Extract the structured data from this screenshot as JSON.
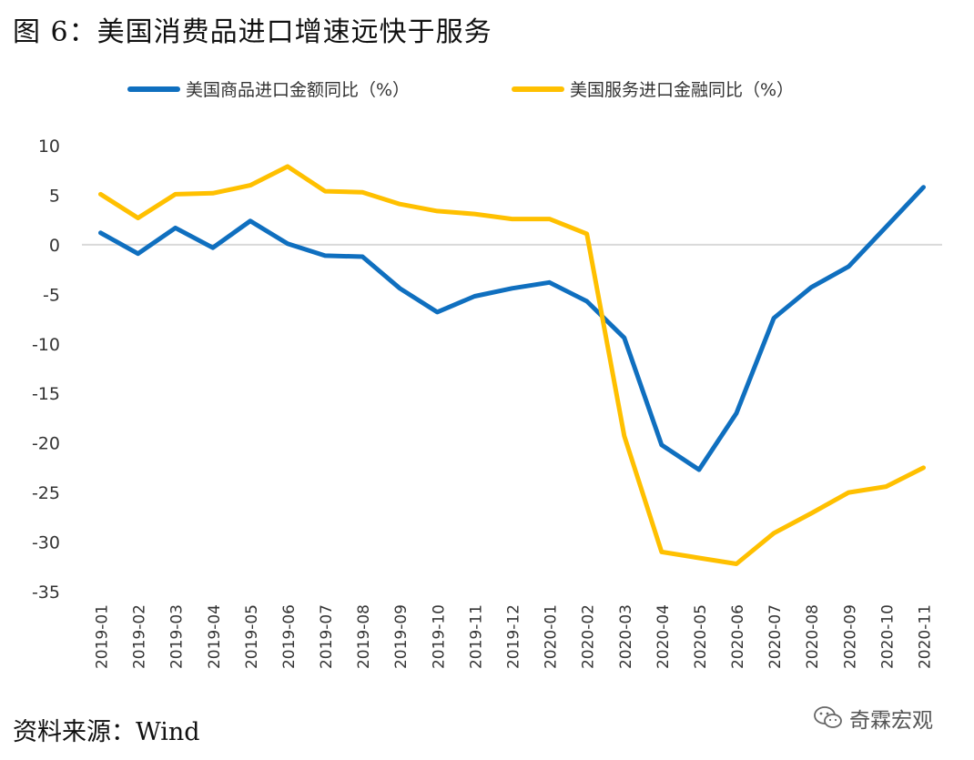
{
  "title": "图 6：美国消费品进口增速远快于服务",
  "source": "资料来源：Wind",
  "watermark": {
    "text": "奇霖宏观",
    "icon": "wechat-bubbles-icon"
  },
  "colors": {
    "goods": "#0F6FBF",
    "services": "#FFC000",
    "zero_line": "#D9D9D9"
  },
  "chart_data": {
    "type": "line",
    "title": "",
    "xlabel": "",
    "ylabel": "",
    "ylim": [
      -35,
      10
    ],
    "yticks": [
      10,
      5,
      0,
      -5,
      -10,
      -15,
      -20,
      -25,
      -30,
      -35
    ],
    "legend": "top",
    "grid": false,
    "categories": [
      "2019-01",
      "2019-02",
      "2019-03",
      "2019-04",
      "2019-05",
      "2019-06",
      "2019-07",
      "2019-08",
      "2019-09",
      "2019-10",
      "2019-11",
      "2019-12",
      "2020-01",
      "2020-02",
      "2020-03",
      "2020-04",
      "2020-05",
      "2020-06",
      "2020-07",
      "2020-08",
      "2020-09",
      "2020-10",
      "2020-11"
    ],
    "series": [
      {
        "name": "美国商品进口金额同比（%）",
        "color": "#0F6FBF",
        "values": [
          1.2,
          -0.9,
          1.7,
          -0.3,
          2.4,
          0.1,
          -1.1,
          -1.2,
          -4.4,
          -6.8,
          -5.2,
          -4.4,
          -3.8,
          -5.7,
          -9.4,
          -20.2,
          -22.7,
          -17.0,
          -7.4,
          -4.3,
          -2.2,
          1.8,
          5.8
        ]
      },
      {
        "name": "美国服务进口金融同比（%）",
        "color": "#FFC000",
        "values": [
          5.1,
          2.7,
          5.1,
          5.2,
          6.0,
          7.9,
          5.4,
          5.3,
          4.1,
          3.4,
          3.1,
          2.6,
          2.6,
          1.1,
          -19.3,
          -31.0,
          -31.6,
          -32.2,
          -29.1,
          -27.1,
          -25.0,
          -24.4,
          -22.5
        ]
      }
    ]
  }
}
